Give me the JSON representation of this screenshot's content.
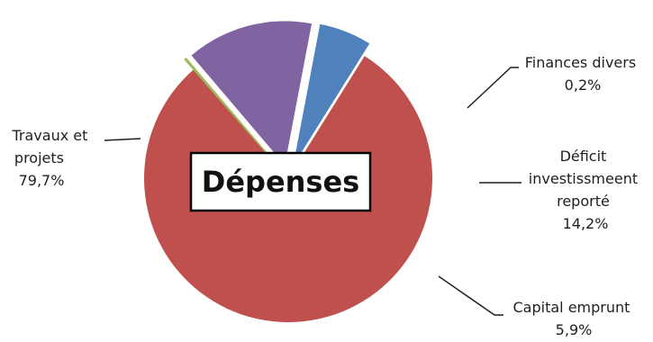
{
  "chart_data": {
    "type": "pie",
    "title": "Dépenses",
    "slices": [
      {
        "label": "Travaux et projets",
        "value": 79.7,
        "value_label": "79,7%",
        "color": "#c0504d",
        "exploded": false
      },
      {
        "label": "Finances divers",
        "value": 0.2,
        "value_label": "0,2%",
        "color": "#9bbb59",
        "exploded": true
      },
      {
        "label": "Déficit investissmeent reporté",
        "value": 14.2,
        "value_label": "14,2%",
        "color": "#8064a2",
        "exploded": true
      },
      {
        "label": "Capital emprunt",
        "value": 5.9,
        "value_label": "5,9%",
        "color": "#4f81bd",
        "exploded": true
      }
    ],
    "legend": "none",
    "label_placement": "outside-with-leader-lines"
  },
  "labels": {
    "travaux": {
      "line1": "Travaux et",
      "line2": "projets",
      "value": "79,7%"
    },
    "finances": {
      "line1": "Finances divers",
      "value": "0,2%"
    },
    "deficit": {
      "line1": "Déficit",
      "line2": "investissmeent",
      "line3": "reporté",
      "value": "14,2%"
    },
    "capital": {
      "line1": "Capital emprunt",
      "value": "5,9%"
    }
  }
}
